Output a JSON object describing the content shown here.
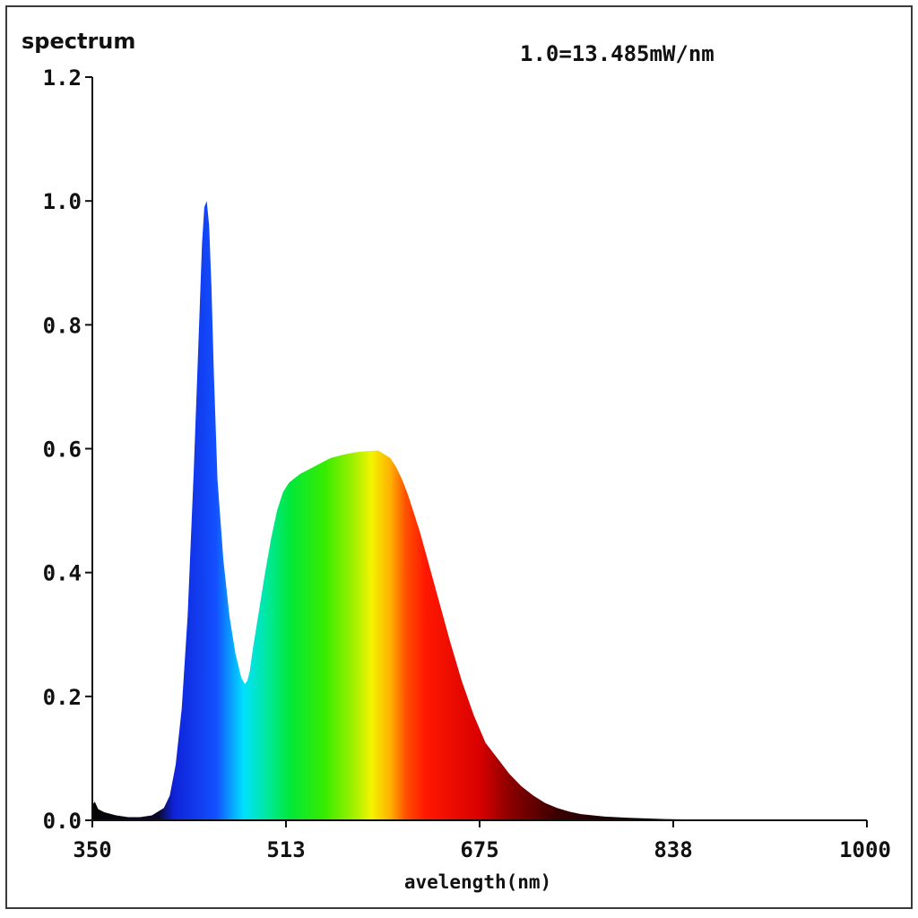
{
  "chart_data": {
    "type": "area",
    "ylabel": "spectrum",
    "xlabel": "avelength(nm)",
    "annotation": "1.0=13.485mW/nm",
    "xlim": [
      350,
      1000
    ],
    "ylim": [
      0,
      1.2
    ],
    "x_ticks": [
      "350",
      "513",
      "675",
      "838",
      "1000"
    ],
    "y_ticks": [
      "0.0",
      "0.2",
      "0.4",
      "0.6",
      "0.8",
      "1.0",
      "1.2"
    ],
    "grid": false,
    "fill": "visible-spectrum-gradient",
    "series": [
      {
        "x": [
          350,
          352,
          355,
          360,
          370,
          380,
          390,
          400,
          410,
          415,
          420,
          425,
          430,
          435,
          440,
          442,
          444,
          446,
          448,
          450,
          452,
          455,
          460,
          465,
          470,
          475,
          478,
          480,
          482,
          485,
          490,
          495,
          500,
          505,
          510,
          515,
          520,
          525,
          530,
          540,
          550,
          560,
          570,
          580,
          590,
          600,
          605,
          610,
          615,
          620,
          625,
          630,
          640,
          650,
          660,
          670,
          680,
          690,
          700,
          710,
          720,
          730,
          740,
          750,
          760,
          780,
          800,
          830,
          860,
          900,
          950,
          1000
        ],
        "y": [
          0.025,
          0.03,
          0.018,
          0.013,
          0.008,
          0.005,
          0.005,
          0.008,
          0.02,
          0.04,
          0.09,
          0.18,
          0.33,
          0.56,
          0.82,
          0.93,
          0.99,
          1.0,
          0.96,
          0.86,
          0.72,
          0.55,
          0.42,
          0.33,
          0.27,
          0.23,
          0.22,
          0.225,
          0.24,
          0.28,
          0.34,
          0.4,
          0.455,
          0.5,
          0.53,
          0.545,
          0.553,
          0.56,
          0.565,
          0.575,
          0.585,
          0.59,
          0.594,
          0.596,
          0.597,
          0.585,
          0.57,
          0.55,
          0.525,
          0.495,
          0.465,
          0.43,
          0.36,
          0.29,
          0.225,
          0.17,
          0.125,
          0.1,
          0.075,
          0.055,
          0.04,
          0.028,
          0.02,
          0.014,
          0.01,
          0.006,
          0.004,
          0.002,
          0.001,
          0.0005,
          0.0002,
          0.0
        ]
      }
    ]
  }
}
